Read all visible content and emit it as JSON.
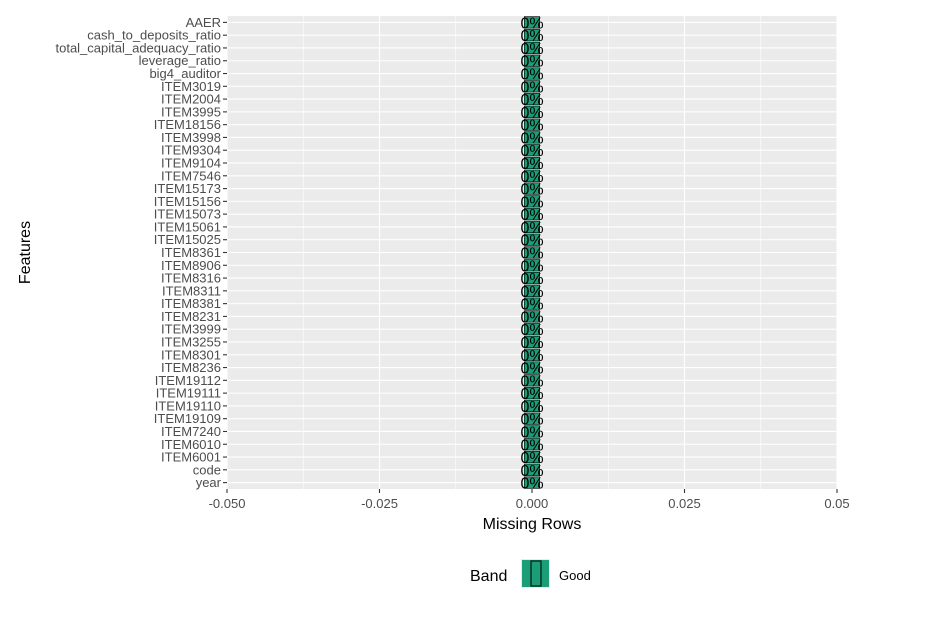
{
  "chart_data": {
    "type": "bar",
    "orientation": "horizontal",
    "categories": [
      "AAER",
      "cash_to_deposits_ratio",
      "total_capital_adequacy_ratio",
      "leverage_ratio",
      "big4_auditor",
      "ITEM3019",
      "ITEM2004",
      "ITEM3995",
      "ITEM18156",
      "ITEM3998",
      "ITEM9304",
      "ITEM9104",
      "ITEM7546",
      "ITEM15173",
      "ITEM15156",
      "ITEM15073",
      "ITEM15061",
      "ITEM15025",
      "ITEM8361",
      "ITEM8906",
      "ITEM8316",
      "ITEM8311",
      "ITEM8381",
      "ITEM8231",
      "ITEM3999",
      "ITEM3255",
      "ITEM8301",
      "ITEM8236",
      "ITEM19112",
      "ITEM19111",
      "ITEM19110",
      "ITEM19109",
      "ITEM7240",
      "ITEM6010",
      "ITEM6001",
      "code",
      "year"
    ],
    "values": [
      0,
      0,
      0,
      0,
      0,
      0,
      0,
      0,
      0,
      0,
      0,
      0,
      0,
      0,
      0,
      0,
      0,
      0,
      0,
      0,
      0,
      0,
      0,
      0,
      0,
      0,
      0,
      0,
      0,
      0,
      0,
      0,
      0,
      0,
      0,
      0,
      0
    ],
    "data_labels": [
      "0%",
      "0%",
      "0%",
      "0%",
      "0%",
      "0%",
      "0%",
      "0%",
      "0%",
      "0%",
      "0%",
      "0%",
      "0%",
      "0%",
      "0%",
      "0%",
      "0%",
      "0%",
      "0%",
      "0%",
      "0%",
      "0%",
      "0%",
      "0%",
      "0%",
      "0%",
      "0%",
      "0%",
      "0%",
      "0%",
      "0%",
      "0%",
      "0%",
      "0%",
      "0%",
      "0%",
      "0%"
    ],
    "xlabel": "Missing Rows",
    "ylabel": "Features",
    "xlim": [
      -0.05,
      0.05
    ],
    "xticks": [
      -0.05,
      -0.025,
      0,
      0.025,
      0.05
    ],
    "xtick_labels": [
      "-0.050",
      "-0.025",
      "0.000",
      "0.025",
      "0.05"
    ],
    "grid": true,
    "legend": {
      "title": "Band",
      "position": "bottom",
      "entries": [
        {
          "label": "Good",
          "color": "#1b9e77"
        }
      ]
    },
    "colors": {
      "panel_background": "#ebebeb",
      "grid": "#ffffff",
      "bar_fill": "#1b9e77",
      "bar_stroke": "#000000"
    }
  }
}
